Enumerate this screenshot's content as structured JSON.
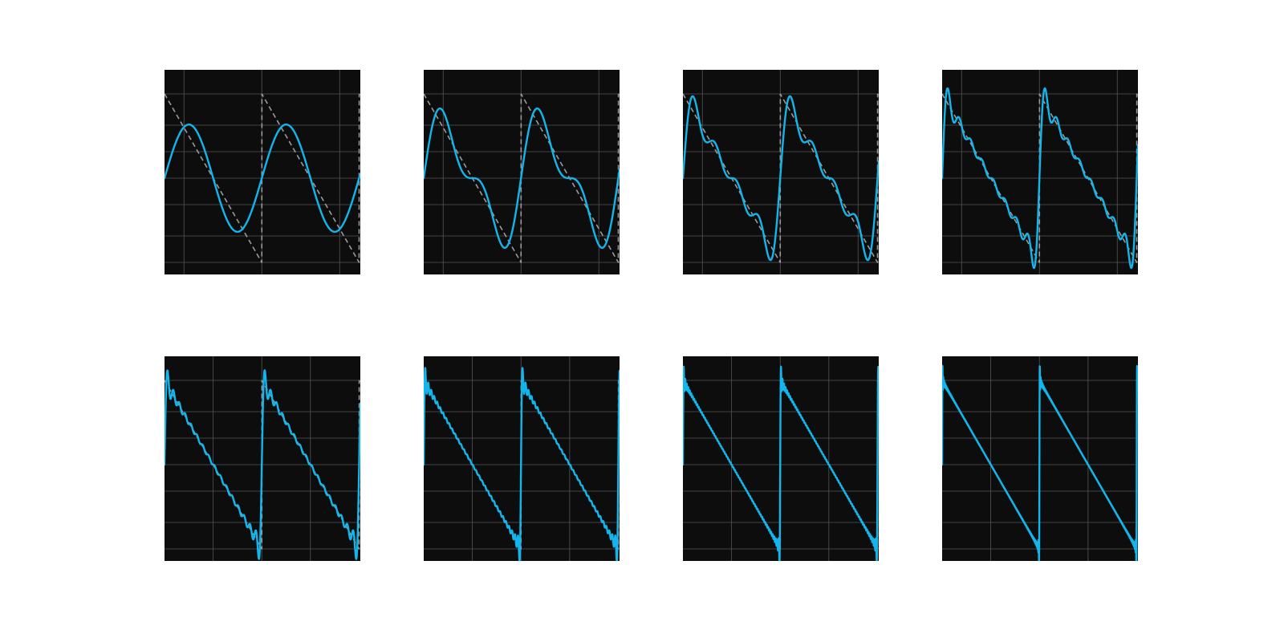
{
  "figure": {
    "background": "#ffffff",
    "panel_background": "#0d0d0d",
    "grid_color": "#555555",
    "approx_color": "#13b6ec",
    "target_color": "#9a9a9a",
    "target_style": "dashed",
    "layout": {
      "rows": 2,
      "cols": 4
    },
    "axes_visible": false
  },
  "chart_data": [
    {
      "type": "line",
      "title": "",
      "xlabel": "",
      "ylabel": "",
      "grid": true,
      "xlim": [
        0,
        4.025
      ],
      "ylim": [
        -2.0,
        2.25
      ],
      "target": "sawtooth",
      "period": 2,
      "xticks": [
        0.4,
        2.0,
        3.6
      ],
      "yticks": [
        -1.75,
        -1.2,
        -0.55,
        0.0,
        0.55,
        1.1,
        1.75
      ],
      "series": [
        {
          "kind": "fourier_partial_sum",
          "harmonics": 1
        }
      ]
    },
    {
      "type": "line",
      "title": "",
      "xlabel": "",
      "ylabel": "",
      "grid": true,
      "xlim": [
        0,
        4.025
      ],
      "ylim": [
        -2.0,
        2.25
      ],
      "target": "sawtooth",
      "period": 2,
      "xticks": [
        0.4,
        2.0,
        3.6
      ],
      "yticks": [
        -1.75,
        -1.2,
        -0.55,
        0.0,
        0.55,
        1.1,
        1.75
      ],
      "series": [
        {
          "kind": "fourier_partial_sum",
          "harmonics": 2
        }
      ]
    },
    {
      "type": "line",
      "title": "",
      "xlabel": "",
      "ylabel": "",
      "grid": true,
      "xlim": [
        0,
        4.025
      ],
      "ylim": [
        -2.0,
        2.25
      ],
      "target": "sawtooth",
      "period": 2,
      "xticks": [
        0.4,
        2.0,
        3.6
      ],
      "yticks": [
        -1.75,
        -1.2,
        -0.55,
        0.0,
        0.55,
        1.1,
        1.75
      ],
      "series": [
        {
          "kind": "fourier_partial_sum",
          "harmonics": 4
        }
      ]
    },
    {
      "type": "line",
      "title": "",
      "xlabel": "",
      "ylabel": "",
      "grid": true,
      "xlim": [
        0,
        4.025
      ],
      "ylim": [
        -2.0,
        2.25
      ],
      "target": "sawtooth",
      "period": 2,
      "xticks": [
        0.4,
        2.0,
        3.6
      ],
      "yticks": [
        -1.75,
        -1.2,
        -0.55,
        0.0,
        0.55,
        1.1,
        1.75
      ],
      "series": [
        {
          "kind": "fourier_partial_sum",
          "harmonics": 8
        }
      ]
    },
    {
      "type": "line",
      "title": "",
      "xlabel": "",
      "ylabel": "",
      "grid": true,
      "xlim": [
        0,
        4.025
      ],
      "ylim": [
        -2.0,
        2.25
      ],
      "target": "sawtooth",
      "period": 2,
      "xticks": [
        1.0,
        2.0,
        3.0
      ],
      "yticks": [
        -1.75,
        -1.2,
        -0.55,
        0.0,
        0.55,
        1.1,
        1.75
      ],
      "series": [
        {
          "kind": "fourier_partial_sum",
          "harmonics": 16
        }
      ]
    },
    {
      "type": "line",
      "title": "",
      "xlabel": "",
      "ylabel": "",
      "grid": true,
      "xlim": [
        0,
        4.025
      ],
      "ylim": [
        -2.0,
        2.25
      ],
      "target": "sawtooth",
      "period": 2,
      "xticks": [
        1.0,
        2.0,
        3.0
      ],
      "yticks": [
        -1.75,
        -1.2,
        -0.55,
        0.0,
        0.55,
        1.1,
        1.75
      ],
      "series": [
        {
          "kind": "fourier_partial_sum",
          "harmonics": 32
        }
      ]
    },
    {
      "type": "line",
      "title": "",
      "xlabel": "",
      "ylabel": "",
      "grid": true,
      "xlim": [
        0,
        4.025
      ],
      "ylim": [
        -2.0,
        2.25
      ],
      "target": "sawtooth",
      "period": 2,
      "xticks": [
        1.0,
        2.0,
        3.0
      ],
      "yticks": [
        -1.75,
        -1.2,
        -0.55,
        0.0,
        0.55,
        1.1,
        1.75
      ],
      "series": [
        {
          "kind": "fourier_partial_sum",
          "harmonics": 64
        }
      ]
    },
    {
      "type": "line",
      "title": "",
      "xlabel": "",
      "ylabel": "",
      "grid": true,
      "xlim": [
        0,
        4.025
      ],
      "ylim": [
        -2.0,
        2.25
      ],
      "target": "sawtooth",
      "period": 2,
      "xticks": [
        1.0,
        2.0,
        3.0
      ],
      "yticks": [
        -1.75,
        -1.2,
        -0.55,
        0.0,
        0.55,
        1.1,
        1.75
      ],
      "series": [
        {
          "kind": "fourier_partial_sum",
          "harmonics": 128
        }
      ]
    }
  ]
}
